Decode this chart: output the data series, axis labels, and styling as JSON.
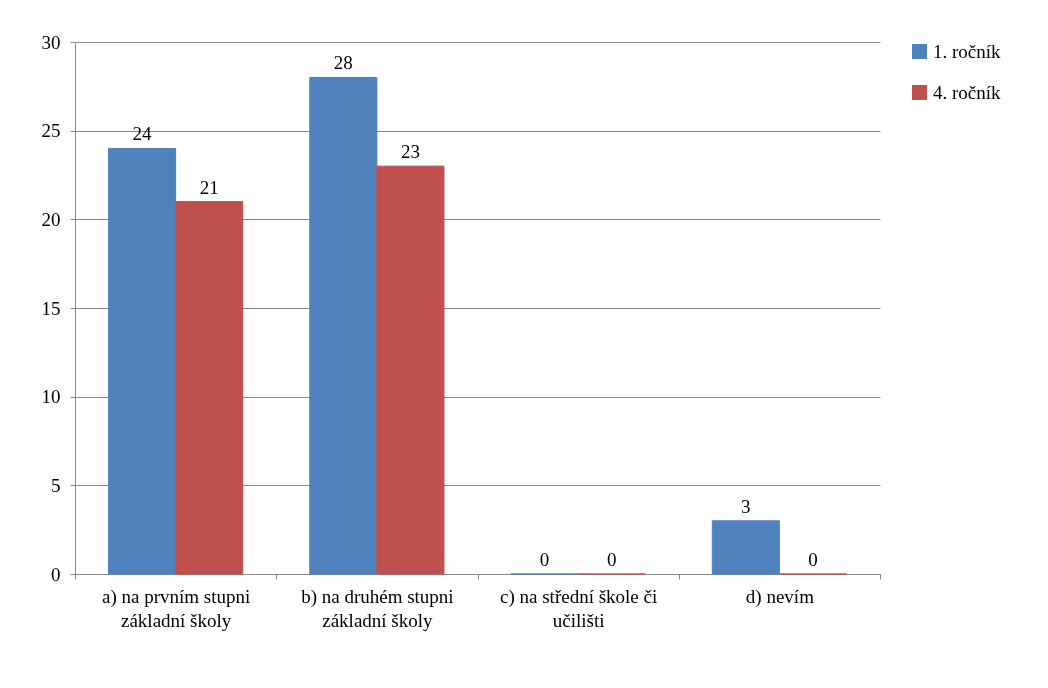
{
  "chart_data": {
    "type": "bar",
    "categories": [
      "a) na prvním stupni základní školy",
      "b) na druhém stupni základní školy",
      "c) na střední škole či učilišti",
      "d) nevím"
    ],
    "series": [
      {
        "name": "1. ročník",
        "color": "#4f81bd",
        "values": [
          24,
          28,
          0,
          3
        ]
      },
      {
        "name": "4. ročník",
        "color": "#c0504d",
        "values": [
          21,
          23,
          0,
          0
        ]
      }
    ],
    "ylim": [
      0,
      30
    ],
    "yticks": [
      0,
      5,
      10,
      15,
      20,
      25,
      30
    ],
    "grid": "y",
    "legend": "right",
    "data_labels": true
  }
}
